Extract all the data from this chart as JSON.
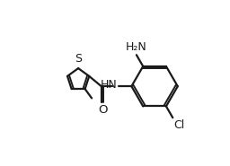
{
  "bg_color": "#ffffff",
  "line_color": "#1a1a1a",
  "line_width": 1.6,
  "font_size": 8.5,
  "xlim": [
    0,
    10
  ],
  "ylim": [
    0,
    7.5
  ]
}
